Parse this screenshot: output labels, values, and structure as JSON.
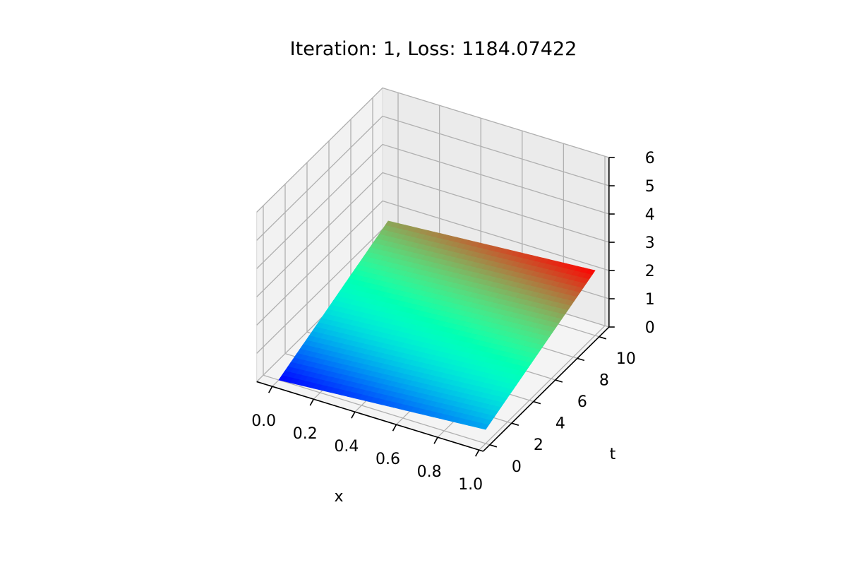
{
  "chart_data": {
    "type": "surface3d",
    "title": "Iteration: 1, Loss: 1184.07422",
    "xlabel": "x",
    "ylabel": "t",
    "zlabel": "",
    "x_ticks": [
      "0.0",
      "0.2",
      "0.4",
      "0.6",
      "0.8",
      "1.0"
    ],
    "t_ticks": [
      "0",
      "2",
      "4",
      "6",
      "8",
      "10"
    ],
    "z_ticks": [
      "0",
      "1",
      "2",
      "3",
      "4",
      "5",
      "6"
    ],
    "xlim": [
      0,
      1
    ],
    "tlim": [
      0,
      10
    ],
    "zlim": [
      0,
      6
    ],
    "grid": true,
    "colormap": "rainbow",
    "surface": {
      "corners": [
        {
          "x": 0.0,
          "t": 0,
          "z": 0.0
        },
        {
          "x": 1.0,
          "t": 0,
          "z": 0.5
        },
        {
          "x": 1.0,
          "t": 10,
          "z": 2.3
        },
        {
          "x": 0.0,
          "t": 10,
          "z": 1.8
        }
      ]
    }
  }
}
